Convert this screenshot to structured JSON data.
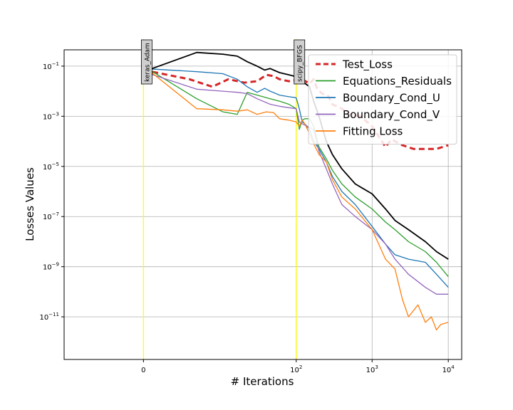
{
  "chart_data": {
    "type": "line",
    "xlabel": "# Iterations",
    "ylabel": "Losses Values",
    "xscale": "symlog",
    "yscale": "log",
    "xlim": [
      -10,
      15000
    ],
    "ylim": [
      -12.7,
      -0.35
    ],
    "grid": true,
    "legend_position": "top-right",
    "x_ticks": [
      {
        "value": 0,
        "label": "0"
      },
      {
        "value": 100,
        "label": "10",
        "exp": "2"
      },
      {
        "value": 1000,
        "label": "10",
        "exp": "3"
      },
      {
        "value": 10000,
        "label": "10",
        "exp": "4"
      }
    ],
    "y_ticks": [
      {
        "value": -1,
        "label": "10",
        "exp": "−1"
      },
      {
        "value": -3,
        "label": "10",
        "exp": "−3"
      },
      {
        "value": -5,
        "label": "10",
        "exp": "−5"
      },
      {
        "value": -7,
        "label": "10",
        "exp": "−7"
      },
      {
        "value": -9,
        "label": "10",
        "exp": "−9"
      },
      {
        "value": -11,
        "label": "10",
        "exp": "−11"
      }
    ],
    "vlines": [
      {
        "x": 0,
        "label": "keras_Adam",
        "color": "#ffff00"
      },
      {
        "x": 100,
        "label": "scipy_BFGS",
        "color": "#ffff00"
      }
    ],
    "series": [
      {
        "name": "Test_Loss",
        "color": "#d62728",
        "dash": "8,5",
        "width": 3,
        "in_legend": true,
        "points": [
          [
            0,
            0.07
          ],
          [
            3,
            0.03
          ],
          [
            7,
            0.015
          ],
          [
            12,
            0.03
          ],
          [
            20,
            0.022
          ],
          [
            30,
            0.025
          ],
          [
            40,
            0.045
          ],
          [
            50,
            0.04
          ],
          [
            60,
            0.03
          ],
          [
            70,
            0.027
          ],
          [
            80,
            0.025
          ],
          [
            100,
            0.028
          ],
          [
            120,
            0.03
          ],
          [
            150,
            0.02
          ],
          [
            170,
            0.03
          ],
          [
            190,
            0.012
          ],
          [
            220,
            0.008
          ],
          [
            260,
            0.007
          ],
          [
            300,
            0.003
          ],
          [
            400,
            0.002
          ],
          [
            500,
            0.0012
          ],
          [
            700,
            0.001
          ],
          [
            1000,
            0.0004
          ],
          [
            1500,
            6e-05
          ],
          [
            1800,
            0.00012
          ],
          [
            2500,
            7e-05
          ],
          [
            3500,
            5e-05
          ],
          [
            5000,
            5e-05
          ],
          [
            7000,
            5e-05
          ],
          [
            10000,
            7e-05
          ]
        ]
      },
      {
        "name": "Equations_Residuals",
        "color": "#2ca02c",
        "width": 1.3,
        "in_legend": true,
        "points": [
          [
            0,
            0.1
          ],
          [
            4,
            0.005
          ],
          [
            10,
            0.0015
          ],
          [
            16,
            0.0012
          ],
          [
            22,
            0.009
          ],
          [
            30,
            0.007
          ],
          [
            45,
            0.005
          ],
          [
            60,
            0.004
          ],
          [
            80,
            0.003
          ],
          [
            100,
            0.002
          ],
          [
            110,
            0.0003
          ],
          [
            120,
            0.0007
          ],
          [
            130,
            0.0008
          ],
          [
            150,
            0.0008
          ],
          [
            170,
            0.0004
          ],
          [
            200,
            6e-05
          ],
          [
            250,
            2e-05
          ],
          [
            300,
            7e-06
          ],
          [
            400,
            2e-06
          ],
          [
            600,
            6e-07
          ],
          [
            1000,
            2e-07
          ],
          [
            1500,
            6e-08
          ],
          [
            2000,
            3e-08
          ],
          [
            3000,
            1e-08
          ],
          [
            5000,
            4e-09
          ],
          [
            7000,
            1.5e-09
          ],
          [
            10000,
            4e-10
          ]
        ]
      },
      {
        "name": "Boundary_Cond_U",
        "color": "#1f77b4",
        "width": 1.3,
        "in_legend": true,
        "points": [
          [
            0,
            0.08
          ],
          [
            4,
            0.06
          ],
          [
            10,
            0.05
          ],
          [
            16,
            0.03
          ],
          [
            22,
            0.015
          ],
          [
            30,
            0.009
          ],
          [
            38,
            0.013
          ],
          [
            45,
            0.01
          ],
          [
            60,
            0.007
          ],
          [
            80,
            0.006
          ],
          [
            100,
            0.0055
          ],
          [
            110,
            0.002
          ],
          [
            120,
            0.0006
          ],
          [
            130,
            0.0005
          ],
          [
            150,
            0.0003
          ],
          [
            170,
            0.0001
          ],
          [
            200,
            5e-05
          ],
          [
            250,
            1.5e-05
          ],
          [
            300,
            4e-06
          ],
          [
            400,
            1e-06
          ],
          [
            600,
            3e-07
          ],
          [
            1000,
            4e-08
          ],
          [
            1500,
            8e-09
          ],
          [
            2000,
            3e-09
          ],
          [
            3000,
            2e-09
          ],
          [
            5000,
            1.5e-09
          ],
          [
            7000,
            5e-10
          ],
          [
            10000,
            1.5e-10
          ]
        ]
      },
      {
        "name": "Boundary_Cond_V",
        "color": "#9467bd",
        "width": 1.3,
        "in_legend": true,
        "points": [
          [
            0,
            0.06
          ],
          [
            4,
            0.012
          ],
          [
            10,
            0.01
          ],
          [
            16,
            0.009
          ],
          [
            22,
            0.008
          ],
          [
            30,
            0.005
          ],
          [
            45,
            0.003
          ],
          [
            60,
            0.0025
          ],
          [
            80,
            0.0022
          ],
          [
            100,
            0.002
          ],
          [
            110,
            0.0006
          ],
          [
            120,
            0.0005
          ],
          [
            140,
            0.0004
          ],
          [
            170,
            0.0003
          ],
          [
            200,
            4e-05
          ],
          [
            250,
            8e-06
          ],
          [
            300,
            2e-06
          ],
          [
            400,
            3e-07
          ],
          [
            600,
            1e-07
          ],
          [
            1000,
            3e-08
          ],
          [
            1500,
            8e-09
          ],
          [
            2000,
            2e-09
          ],
          [
            3000,
            5e-10
          ],
          [
            5000,
            1.5e-10
          ],
          [
            7000,
            8e-11
          ],
          [
            10000,
            8e-11
          ]
        ]
      },
      {
        "name": "Fitting Loss",
        "color": "#ff7f0e",
        "width": 1.3,
        "in_legend": true,
        "points": [
          [
            0,
            0.1
          ],
          [
            4,
            0.002
          ],
          [
            10,
            0.0018
          ],
          [
            16,
            0.0016
          ],
          [
            22,
            0.0018
          ],
          [
            30,
            0.0012
          ],
          [
            40,
            0.0015
          ],
          [
            50,
            0.0014
          ],
          [
            60,
            0.0008
          ],
          [
            80,
            0.0007
          ],
          [
            100,
            0.0006
          ],
          [
            110,
            0.0004
          ],
          [
            120,
            0.0007
          ],
          [
            130,
            0.0005
          ],
          [
            150,
            0.0002
          ],
          [
            170,
            8e-05
          ],
          [
            200,
            3e-05
          ],
          [
            250,
            1.5e-05
          ],
          [
            300,
            3e-06
          ],
          [
            400,
            6e-07
          ],
          [
            600,
            2e-07
          ],
          [
            1000,
            3e-08
          ],
          [
            1500,
            2e-09
          ],
          [
            2000,
            8e-10
          ],
          [
            2500,
            5e-11
          ],
          [
            3000,
            1e-11
          ],
          [
            4000,
            3e-11
          ],
          [
            5000,
            6e-12
          ],
          [
            6000,
            1e-11
          ],
          [
            7000,
            3e-12
          ],
          [
            8000,
            5e-12
          ],
          [
            10000,
            6e-12
          ]
        ]
      },
      {
        "name": "",
        "color": "#000000",
        "width": 1.8,
        "in_legend": false,
        "points": [
          [
            0,
            0.06
          ],
          [
            4,
            0.35
          ],
          [
            10,
            0.3
          ],
          [
            16,
            0.25
          ],
          [
            22,
            0.15
          ],
          [
            30,
            0.1
          ],
          [
            38,
            0.07
          ],
          [
            45,
            0.08
          ],
          [
            60,
            0.055
          ],
          [
            80,
            0.045
          ],
          [
            100,
            0.038
          ],
          [
            120,
            0.025
          ],
          [
            150,
            0.015
          ],
          [
            170,
            0.004
          ],
          [
            200,
            0.001
          ],
          [
            250,
            0.0001
          ],
          [
            300,
            3e-05
          ],
          [
            400,
            8e-06
          ],
          [
            600,
            2e-06
          ],
          [
            1000,
            8e-07
          ],
          [
            1500,
            2e-07
          ],
          [
            2000,
            7e-08
          ],
          [
            3000,
            3e-08
          ],
          [
            5000,
            1e-08
          ],
          [
            7000,
            4e-09
          ],
          [
            10000,
            2e-09
          ]
        ]
      }
    ]
  }
}
